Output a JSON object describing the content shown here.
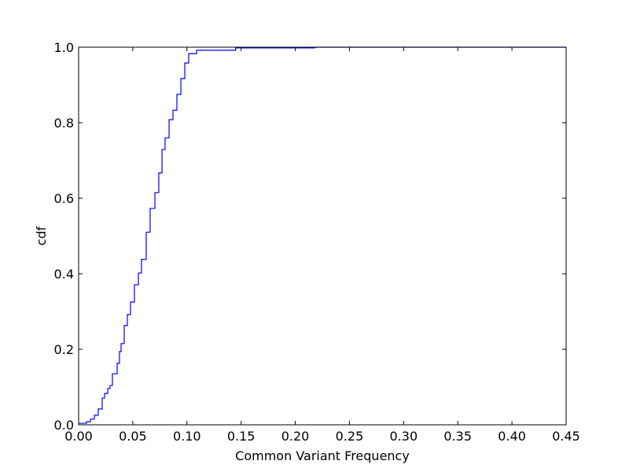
{
  "chart_data": {
    "type": "line",
    "title": "",
    "xlabel": "Common Variant Frequency",
    "ylabel": "cdf",
    "xlim": [
      0,
      0.45
    ],
    "ylim": [
      0,
      1.0
    ],
    "grid": false,
    "line_color": "#0000ff",
    "xticks": [
      "0.00",
      "0.05",
      "0.10",
      "0.15",
      "0.20",
      "0.25",
      "0.30",
      "0.35",
      "0.40",
      "0.45"
    ],
    "yticks": [
      "0.0",
      "0.2",
      "0.4",
      "0.6",
      "0.8",
      "1.0"
    ],
    "x": [
      0,
      0.0073,
      0.0109,
      0.0145,
      0.0181,
      0.0218,
      0.024,
      0.0269,
      0.029,
      0.0312,
      0.0356,
      0.0377,
      0.0392,
      0.0421,
      0.045,
      0.0479,
      0.0515,
      0.0552,
      0.058,
      0.0624,
      0.066,
      0.0704,
      0.074,
      0.077,
      0.0798,
      0.0835,
      0.0871,
      0.0907,
      0.0944,
      0.098,
      0.1016,
      0.1089,
      0.145,
      0.218,
      0.45
    ],
    "y": [
      0.004,
      0.008,
      0.015,
      0.025,
      0.042,
      0.071,
      0.083,
      0.096,
      0.104,
      0.135,
      0.163,
      0.194,
      0.215,
      0.263,
      0.292,
      0.325,
      0.371,
      0.402,
      0.438,
      0.51,
      0.573,
      0.615,
      0.667,
      0.729,
      0.76,
      0.808,
      0.833,
      0.875,
      0.917,
      0.958,
      0.983,
      0.992,
      0.998,
      1.0,
      1.0
    ]
  }
}
